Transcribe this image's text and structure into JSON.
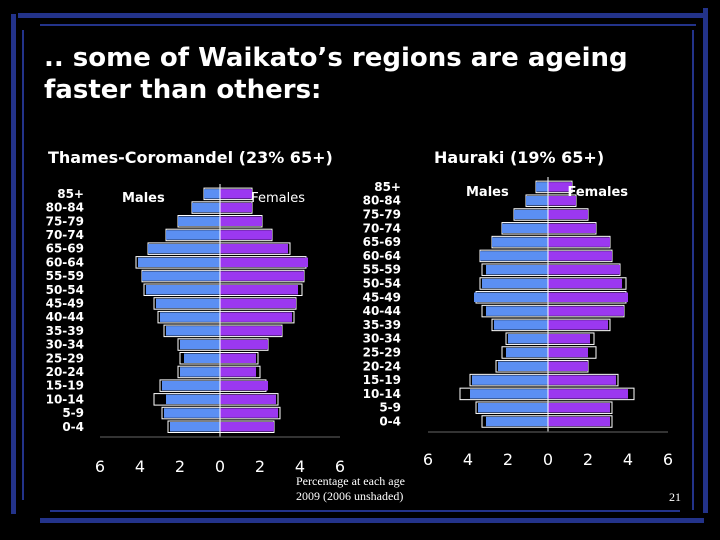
{
  "slide": {
    "title_line1": ".. some of Waikato’s regions are ageing",
    "title_line2": "faster than others:",
    "footnote_line1": "Percentage at each age",
    "footnote_line2": "2009  (2006 unshaded)",
    "page_number": "21"
  },
  "colors": {
    "male": "#5b8ff3",
    "female": "#9b38f0",
    "stripe": "#23338a"
  },
  "chart_data": [
    {
      "type": "bar",
      "subtitle": "Thames-Coromandel (23% 65+)",
      "legend_males": "Males",
      "legend_females": "Females",
      "categories": [
        "85+",
        "80-84",
        "75-79",
        "70-74",
        "65-69",
        "60-64",
        "55-59",
        "50-54",
        "45-49",
        "40-44",
        "35-39",
        "30-34",
        "25-29",
        "20-24",
        "15-19",
        "10-14",
        "5-9",
        "0-4"
      ],
      "xticks": [
        "6",
        "4",
        "2",
        "0",
        "2",
        "4",
        "6"
      ],
      "xlim": [
        -6,
        6
      ],
      "series": [
        {
          "name": "Males",
          "values_2009": [
            0.8,
            1.4,
            2.1,
            2.7,
            3.6,
            4.1,
            3.9,
            3.7,
            3.2,
            3.0,
            2.7,
            2.0,
            1.8,
            2.0,
            2.9,
            2.7,
            2.8,
            2.5
          ],
          "values_2006": [
            0.8,
            1.4,
            2.1,
            2.7,
            3.6,
            4.2,
            3.9,
            3.8,
            3.3,
            3.1,
            2.8,
            2.1,
            2.0,
            2.1,
            3.0,
            3.3,
            2.9,
            2.6
          ]
        },
        {
          "name": "Females",
          "values_2009": [
            1.6,
            1.6,
            2.1,
            2.6,
            3.4,
            4.4,
            4.2,
            3.9,
            3.8,
            3.6,
            3.1,
            2.4,
            1.8,
            1.8,
            2.4,
            2.8,
            2.9,
            2.7
          ],
          "values_2006": [
            1.6,
            1.6,
            2.1,
            2.6,
            3.5,
            4.3,
            4.2,
            4.1,
            3.8,
            3.7,
            3.1,
            2.4,
            1.9,
            2.0,
            2.3,
            2.9,
            3.0,
            2.7
          ]
        }
      ]
    },
    {
      "type": "bar",
      "subtitle": "Hauraki (19% 65+)",
      "legend_males": "Males",
      "legend_females": "Females",
      "categories": [
        "85+",
        "80-84",
        "75-79",
        "70-74",
        "65-69",
        "60-64",
        "55-59",
        "50-54",
        "45-49",
        "40-44",
        "35-39",
        "30-34",
        "25-29",
        "20-24",
        "15-19",
        "10-14",
        "5-9",
        "0-4"
      ],
      "xticks": [
        "6",
        "4",
        "2",
        "0",
        "2",
        "4",
        "6"
      ],
      "xlim": [
        -6,
        6
      ],
      "series": [
        {
          "name": "Males",
          "values_2009": [
            0.6,
            1.1,
            1.7,
            2.3,
            2.8,
            3.4,
            3.1,
            3.3,
            3.7,
            3.1,
            2.7,
            2.0,
            2.1,
            2.5,
            3.8,
            3.9,
            3.5,
            3.1
          ],
          "values_2006": [
            0.6,
            1.1,
            1.7,
            2.3,
            2.8,
            3.4,
            3.3,
            3.4,
            3.6,
            3.3,
            2.8,
            2.1,
            2.3,
            2.6,
            3.9,
            4.4,
            3.6,
            3.3
          ]
        },
        {
          "name": "Females",
          "values_2009": [
            1.2,
            1.4,
            2.0,
            2.4,
            3.1,
            3.2,
            3.6,
            3.7,
            4.0,
            3.8,
            3.0,
            2.1,
            2.0,
            2.0,
            3.4,
            4.0,
            3.1,
            3.1
          ],
          "values_2006": [
            1.2,
            1.4,
            2.0,
            2.4,
            3.1,
            3.2,
            3.6,
            3.9,
            3.9,
            3.8,
            3.1,
            2.3,
            2.4,
            2.0,
            3.5,
            4.3,
            3.2,
            3.2
          ]
        }
      ]
    }
  ]
}
